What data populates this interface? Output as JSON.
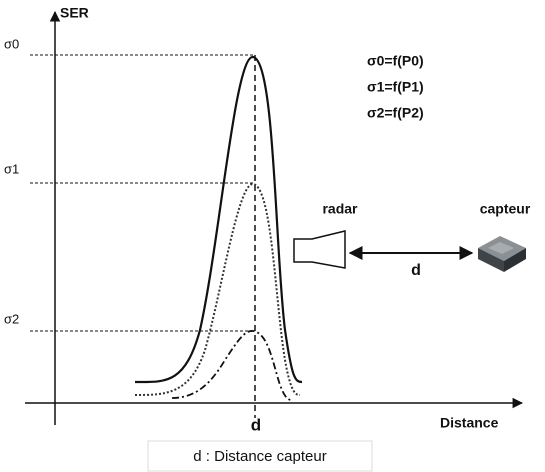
{
  "axes": {
    "y_label": "SER",
    "x_label": "Distance",
    "x_mark": "d"
  },
  "levels": [
    {
      "label": "σ0"
    },
    {
      "label": "σ1"
    },
    {
      "label": "σ2"
    }
  ],
  "legend": [
    "σ0=f(P0)",
    "σ1=f(P1)",
    "σ2=f(P2)"
  ],
  "radar": {
    "label": "radar"
  },
  "sensor": {
    "label": "capteur"
  },
  "distance": {
    "label": "d"
  },
  "caption": "d : Distance capteur"
}
